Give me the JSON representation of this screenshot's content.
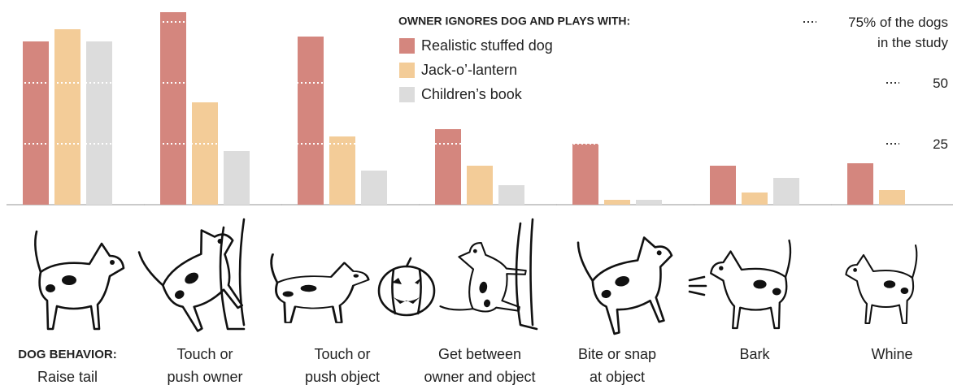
{
  "chart_data": {
    "type": "bar",
    "legend_title": "OWNER IGNORES DOG AND PLAYS WITH:",
    "x_label": "DOG BEHAVIOR:",
    "categories": [
      [
        "Raise tail"
      ],
      [
        "Touch or",
        "push owner"
      ],
      [
        "Touch or",
        "push object"
      ],
      [
        "Get between",
        "owner and object"
      ],
      [
        "Bite or snap",
        "at object"
      ],
      [
        "Bark"
      ],
      [
        "Whine"
      ]
    ],
    "series": [
      {
        "name": "Realistic stuffed dog",
        "color": "#d4867e",
        "values": [
          67,
          79,
          69,
          31,
          25,
          16,
          17
        ]
      },
      {
        "name": "Jack-o’-lantern",
        "color": "#f3cc98",
        "values": [
          72,
          42,
          28,
          16,
          2,
          5,
          6
        ]
      },
      {
        "name": "Children’s book",
        "color": "#dcdcdc",
        "values": [
          67,
          22,
          14,
          8,
          2,
          11,
          null
        ]
      }
    ],
    "ylim": [
      0,
      79
    ],
    "yticks": [
      25,
      50,
      {
        "value": 75,
        "label": "75% of the dogs in the study"
      }
    ],
    "grid": true
  }
}
